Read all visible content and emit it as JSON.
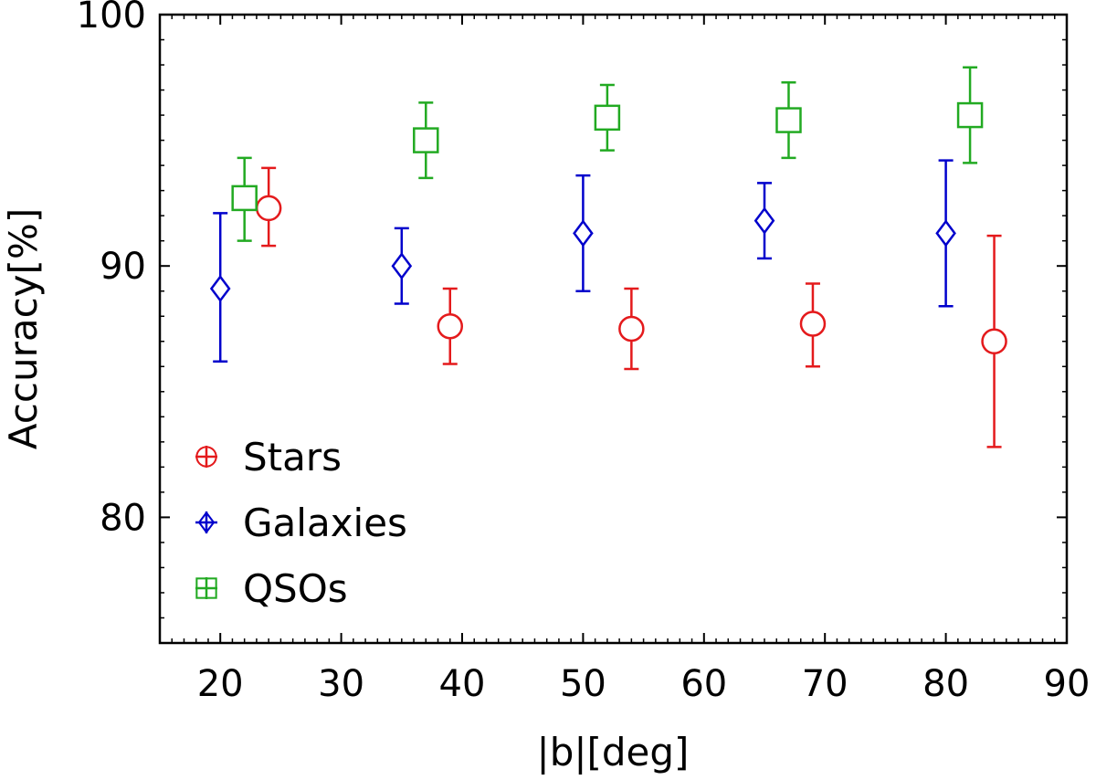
{
  "chart_data": {
    "type": "scatter",
    "title": "",
    "xlabel": "|b|[deg]",
    "ylabel": "Accuracy[%]",
    "xlim": [
      15,
      90
    ],
    "ylim": [
      75,
      100
    ],
    "xticks": [
      20,
      30,
      40,
      50,
      60,
      70,
      80,
      90
    ],
    "yticks": [
      80,
      90,
      100
    ],
    "legend_position": "bottom-left",
    "series": [
      {
        "name": "Stars",
        "marker": "circle",
        "color": "#e41a1c",
        "points": [
          {
            "x": 24,
            "y": 92.3,
            "low": 90.8,
            "high": 93.9
          },
          {
            "x": 39,
            "y": 87.6,
            "low": 86.1,
            "high": 89.1
          },
          {
            "x": 54,
            "y": 87.5,
            "low": 85.9,
            "high": 89.1
          },
          {
            "x": 69,
            "y": 87.7,
            "low": 86.0,
            "high": 89.3
          },
          {
            "x": 84,
            "y": 87.0,
            "low": 82.8,
            "high": 91.2
          }
        ]
      },
      {
        "name": "Galaxies",
        "marker": "diamond",
        "color": "#0000cc",
        "points": [
          {
            "x": 20,
            "y": 89.1,
            "low": 86.2,
            "high": 92.1
          },
          {
            "x": 35,
            "y": 90.0,
            "low": 88.5,
            "high": 91.5
          },
          {
            "x": 50,
            "y": 91.3,
            "low": 89.0,
            "high": 93.6
          },
          {
            "x": 65,
            "y": 91.8,
            "low": 90.3,
            "high": 93.3
          },
          {
            "x": 80,
            "y": 91.3,
            "low": 88.4,
            "high": 94.2
          }
        ]
      },
      {
        "name": "QSOs",
        "marker": "square",
        "color": "#22aa22",
        "points": [
          {
            "x": 22,
            "y": 92.7,
            "low": 91.0,
            "high": 94.3
          },
          {
            "x": 37,
            "y": 95.0,
            "low": 93.5,
            "high": 96.5
          },
          {
            "x": 52,
            "y": 95.9,
            "low": 94.6,
            "high": 97.2
          },
          {
            "x": 67,
            "y": 95.8,
            "low": 94.3,
            "high": 97.3
          },
          {
            "x": 82,
            "y": 96.0,
            "low": 94.1,
            "high": 97.9
          }
        ]
      }
    ]
  }
}
